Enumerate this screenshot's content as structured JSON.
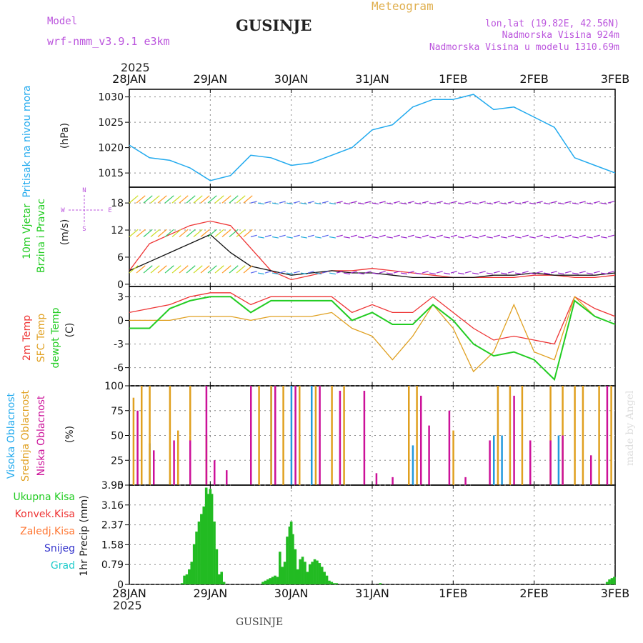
{
  "header": {
    "model_label": "Model",
    "model_name": "wrf-nmm_v3.9.1 e3km",
    "station": "GUSINJE",
    "product": "Meteogram",
    "coords": "lon,lat (19.82E, 42.56N)",
    "elevation": "Nadmorska Visina 924m",
    "model_elevation": "Nadmorska Visina u modelu 1310.69m",
    "year_top": "2025",
    "year_bottom": "2025",
    "footer_station": "GUSINJE",
    "credit": "made by Angel"
  },
  "colors": {
    "pressure": "#22aaee",
    "temp2m": "#ee3333",
    "sfc": "#e0a020",
    "dew": "#22cc22",
    "high_cloud": "#2299dd",
    "mid_cloud": "#e0a020",
    "low_cloud": "#cc1199",
    "precip": "#22bb22",
    "grid": "#888888"
  },
  "time_axis": {
    "labels": [
      "28JAN",
      "29JAN",
      "30JAN",
      "31JAN",
      "1FEB",
      "2FEB",
      "3FEB"
    ]
  },
  "panels": {
    "pressure": {
      "label": "Pritisak na nivou mora",
      "unit": "(hPa)",
      "ticks": [
        "1015",
        "1020",
        "1025",
        "1030"
      ]
    },
    "wind": {
      "label1": "10m Vjetar",
      "label2": "Brzina i Pravac",
      "unit": "(m/s)",
      "ticks": [
        "0",
        "6",
        "12",
        "18"
      ],
      "compass": {
        "n": "N",
        "s": "S",
        "e": "E",
        "w": "W"
      }
    },
    "temp": {
      "label1": "2m Temp",
      "label2": "SFC Temp",
      "label3": "dewpt Temp",
      "unit": "(C)",
      "ticks": [
        "-6",
        "-3",
        "0",
        "3"
      ]
    },
    "cloud": {
      "label1": "Visoka Oblacnost",
      "label2": "Srednja Oblacnost",
      "label3": "Niska Oblacnost",
      "unit": "(%)",
      "ticks": [
        "0",
        "25",
        "50",
        "75",
        "100"
      ]
    },
    "precip": {
      "unit": "1hr Precip (mm)",
      "ticks": [
        "0",
        "0.79",
        "1.58",
        "2.37",
        "3.16",
        "3.95"
      ],
      "legend": [
        "Ukupna Kisa",
        "Konvek.Kisa",
        "Zaledj.Kisa",
        "Snijeg",
        "Grad"
      ]
    }
  },
  "chart_data": [
    {
      "type": "line",
      "title": "Pritisak na nivou mora",
      "ylabel": "(hPa)",
      "ylim": [
        1012.2,
        1031.5
      ],
      "x_days": [
        0,
        0.25,
        0.5,
        0.75,
        1,
        1.25,
        1.5,
        1.75,
        2,
        2.25,
        2.5,
        2.75,
        3,
        3.25,
        3.5,
        3.75,
        4,
        4.25,
        4.5,
        4.75,
        5,
        5.25,
        5.5,
        5.75,
        6
      ],
      "values": [
        1020.5,
        1018,
        1017.5,
        1016,
        1013.5,
        1014.5,
        1018.5,
        1018,
        1016.5,
        1017,
        1018.5,
        1020,
        1023.5,
        1024.5,
        1028,
        1029.5,
        1029.5,
        1030.5,
        1027.5,
        1028,
        1026,
        1024,
        1018,
        1016.5,
        1015
      ]
    },
    {
      "type": "line",
      "title": "10m Vjetar Brzina i Pravac",
      "ylabel": "(m/s)",
      "ylim": [
        -0.5,
        21.5
      ],
      "x_days": [
        0,
        0.25,
        0.5,
        0.75,
        1,
        1.25,
        1.5,
        1.75,
        2,
        2.25,
        2.5,
        2.75,
        3,
        3.25,
        3.5,
        3.75,
        4,
        4.25,
        4.5,
        4.75,
        5,
        5.25,
        5.5,
        5.75,
        6
      ],
      "gust_values": [
        3,
        9,
        11,
        13,
        14,
        13,
        8,
        3,
        1,
        2,
        3,
        3,
        3.5,
        3,
        2.5,
        2,
        1.5,
        1.5,
        1.5,
        1.5,
        2,
        2,
        1.5,
        1.5,
        2
      ],
      "speed_values": [
        3,
        5,
        7,
        9,
        11,
        7,
        4,
        3,
        2,
        2.5,
        3,
        2.5,
        2.5,
        2,
        1.5,
        1.5,
        1.5,
        1.5,
        2,
        2,
        2.5,
        2,
        2,
        2,
        2.5
      ]
    },
    {
      "type": "line",
      "title": "Temperature",
      "ylabel": "(C)",
      "ylim": [
        -8.3,
        4.3
      ],
      "x_days": [
        0,
        0.25,
        0.5,
        0.75,
        1,
        1.25,
        1.5,
        1.75,
        2,
        2.25,
        2.5,
        2.75,
        3,
        3.25,
        3.5,
        3.75,
        4,
        4.25,
        4.5,
        4.75,
        5,
        5.25,
        5.5,
        5.75,
        6
      ],
      "series": [
        {
          "name": "2m Temp",
          "values": [
            1,
            1.5,
            2,
            3,
            3.5,
            3.5,
            2,
            3,
            3,
            3,
            3,
            1,
            2,
            1,
            1,
            3,
            1,
            -1,
            -2.5,
            -2,
            -2.5,
            -3,
            3,
            1.5,
            0.5
          ]
        },
        {
          "name": "SFC Temp",
          "values": [
            0,
            0,
            0,
            0.5,
            0.5,
            0.5,
            0,
            0.5,
            0.5,
            0.5,
            1,
            -1,
            -2,
            -5,
            -2,
            2,
            -1,
            -6.5,
            -4,
            2,
            -4,
            -5,
            3,
            0.5,
            -0.5
          ]
        },
        {
          "name": "dewpt Temp",
          "values": [
            -1,
            -1,
            1.5,
            2.5,
            3,
            3,
            1,
            2.5,
            2.5,
            2.5,
            2.5,
            0,
            1,
            -0.5,
            -0.5,
            2,
            0,
            -3,
            -4.5,
            -4,
            -5,
            -7.5,
            2.5,
            0.5,
            -0.5
          ]
        }
      ]
    },
    {
      "type": "bar",
      "title": "Oblacnost",
      "ylabel": "(%)",
      "ylim": [
        0,
        100
      ],
      "note": "hourly cloud cover bars",
      "series": [
        {
          "name": "Visoka Oblacnost",
          "x_days": [
            0.25,
            0.5,
            1.5,
            1.75,
            2,
            2.25,
            3.5,
            4.5,
            4.6,
            5.3
          ],
          "values": [
            42,
            5,
            95,
            100,
            100,
            100,
            40,
            50,
            50,
            50
          ]
        },
        {
          "name": "Srednja Oblacnost",
          "x_days": [
            0.05,
            0.15,
            0.25,
            0.5,
            0.6,
            0.75,
            0.95,
            1.5,
            1.6,
            1.75,
            1.9,
            2.1,
            2.3,
            2.5,
            2.65,
            3.45,
            3.55,
            4.0,
            4.55,
            4.7,
            4.85,
            5.2,
            5.35,
            5.5,
            5.6,
            5.8,
            5.95
          ],
          "values": [
            88,
            100,
            100,
            100,
            55,
            100,
            50,
            100,
            100,
            100,
            100,
            100,
            100,
            100,
            100,
            100,
            100,
            55,
            100,
            100,
            100,
            100,
            100,
            100,
            100,
            100,
            100
          ]
        },
        {
          "name": "Niska Oblacnost",
          "x_days": [
            0.1,
            0.3,
            0.55,
            0.75,
            0.95,
            1.05,
            1.2,
            1.5,
            1.8,
            2.05,
            2.35,
            2.6,
            2.9,
            3.05,
            3.25,
            3.6,
            3.7,
            3.95,
            4.15,
            4.45,
            4.75,
            4.95,
            5.2,
            5.35,
            5.7,
            5.9
          ],
          "values": [
            75,
            35,
            45,
            45,
            100,
            25,
            15,
            100,
            100,
            100,
            100,
            95,
            95,
            12,
            8,
            90,
            60,
            75,
            8,
            45,
            90,
            45,
            45,
            50,
            30,
            100
          ]
        }
      ]
    },
    {
      "type": "bar",
      "title": "1hr Precip",
      "ylabel": "1hr Precip (mm)",
      "ylim": [
        0,
        3.95
      ],
      "x_days": [
        0.65,
        0.68,
        0.71,
        0.74,
        0.77,
        0.8,
        0.83,
        0.86,
        0.89,
        0.92,
        0.95,
        0.98,
        1.0,
        1.02,
        1.05,
        1.08,
        1.11,
        1.14,
        1.17,
        1.65,
        1.68,
        1.71,
        1.74,
        1.77,
        1.8,
        1.83,
        1.86,
        1.89,
        1.92,
        1.95,
        1.98,
        2.0,
        2.02,
        2.05,
        2.08,
        2.11,
        2.14,
        2.17,
        2.2,
        2.23,
        2.26,
        2.29,
        2.32,
        2.35,
        2.38,
        2.41,
        2.44,
        2.47,
        2.5,
        2.53,
        2.56,
        3.1,
        5.9,
        5.93,
        5.96,
        5.99
      ],
      "values": [
        0.05,
        0.35,
        0.4,
        0.6,
        0.9,
        1.6,
        2.1,
        2.5,
        2.8,
        3.1,
        3.85,
        3.6,
        3.8,
        3.6,
        2.5,
        1.4,
        0.4,
        0.5,
        0.1,
        0.1,
        0.15,
        0.2,
        0.25,
        0.3,
        0.35,
        0.3,
        1.3,
        0.7,
        0.9,
        1.9,
        2.3,
        2.5,
        2.0,
        1.4,
        0.6,
        1.0,
        1.1,
        0.9,
        0.5,
        0.8,
        0.9,
        1.0,
        0.95,
        0.85,
        0.7,
        0.5,
        0.35,
        0.15,
        0.1,
        0.05,
        0.05,
        0.05,
        0.1,
        0.2,
        0.25,
        0.3
      ]
    }
  ]
}
